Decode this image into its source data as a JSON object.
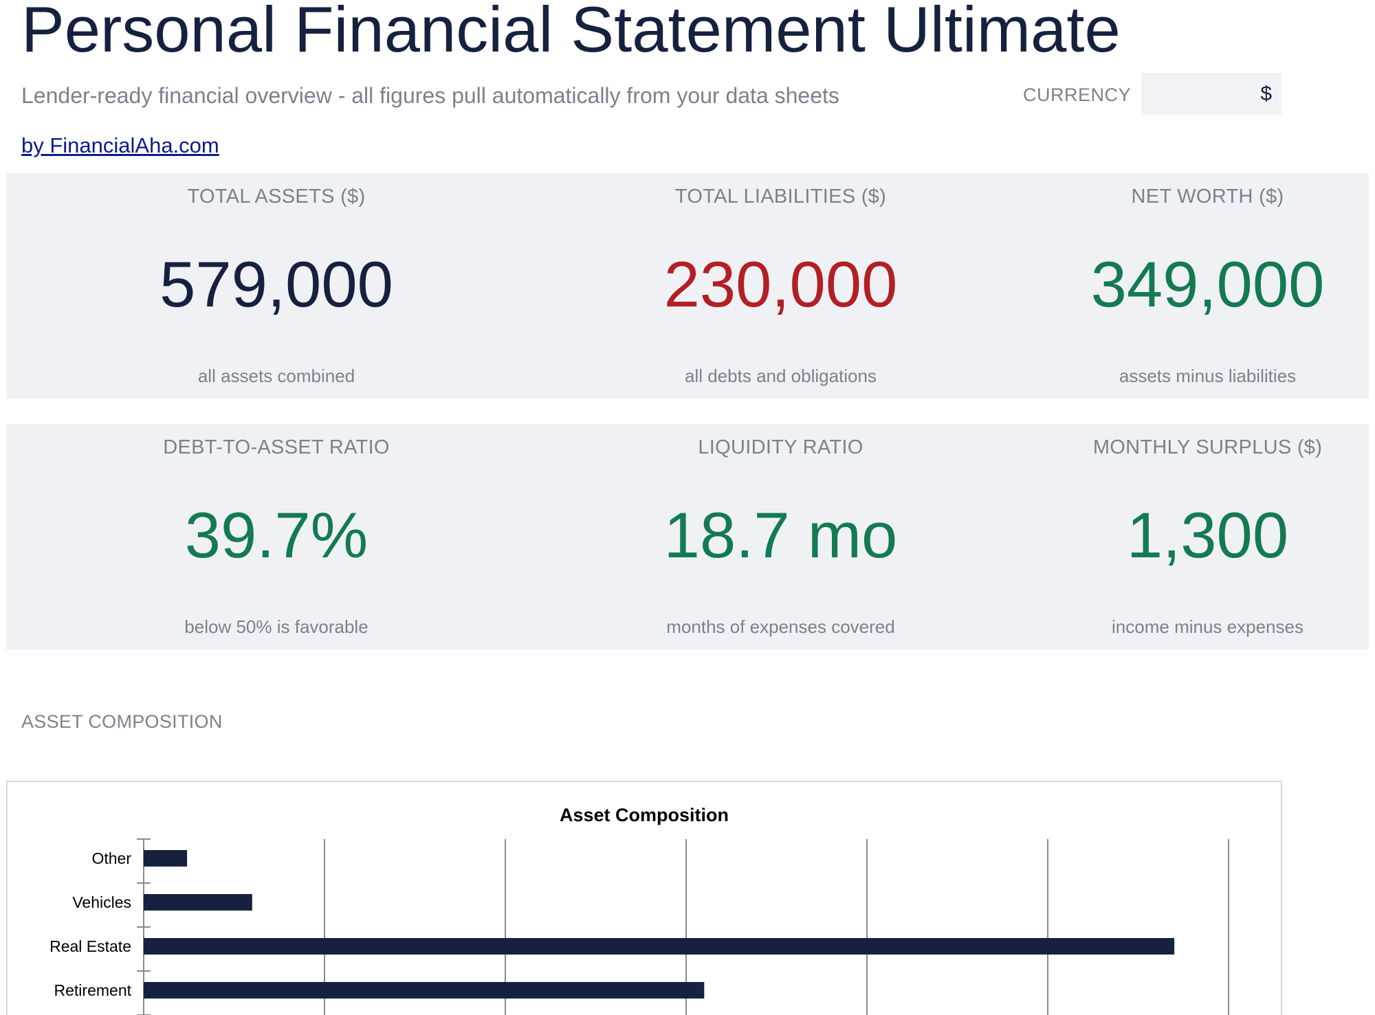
{
  "header": {
    "title": "Personal Financial Statement Ultimate",
    "subtitle": "Lender-ready financial overview - all figures pull automatically from your data sheets",
    "byline": "by FinancialAha.com",
    "currency_label": "CURRENCY",
    "currency_value": "$"
  },
  "kpis_row1": [
    {
      "label": "TOTAL ASSETS ($)",
      "value": "579,000",
      "sub": "all assets combined",
      "color": "#16213f"
    },
    {
      "label": "TOTAL LIABILITIES ($)",
      "value": "230,000",
      "sub": "all debts and obligations",
      "color": "#b21f24"
    },
    {
      "label": "NET WORTH ($)",
      "value": "349,000",
      "sub": "assets minus liabilities",
      "color": "#137a52"
    }
  ],
  "kpis_row2": [
    {
      "label": "DEBT-TO-ASSET RATIO",
      "value": "39.7%",
      "sub": "below 50% is favorable",
      "color": "#137a52"
    },
    {
      "label": "LIQUIDITY RATIO",
      "value": "18.7 mo",
      "sub": "months of expenses covered",
      "color": "#137a52"
    },
    {
      "label": "MONTHLY SURPLUS ($)",
      "value": "1,300",
      "sub": "income minus expenses",
      "color": "#137a52"
    }
  ],
  "asset_section": {
    "label": "ASSET COMPOSITION"
  },
  "chart_data": {
    "type": "bar",
    "orientation": "horizontal",
    "title": "Asset Composition",
    "categories": [
      "Other",
      "Vehicles",
      "Real Estate",
      "Retirement"
    ],
    "values": [
      12000,
      30000,
      285000,
      155000
    ],
    "xlim": [
      0,
      300000
    ],
    "bar_color": "#16213f",
    "grid": true
  }
}
